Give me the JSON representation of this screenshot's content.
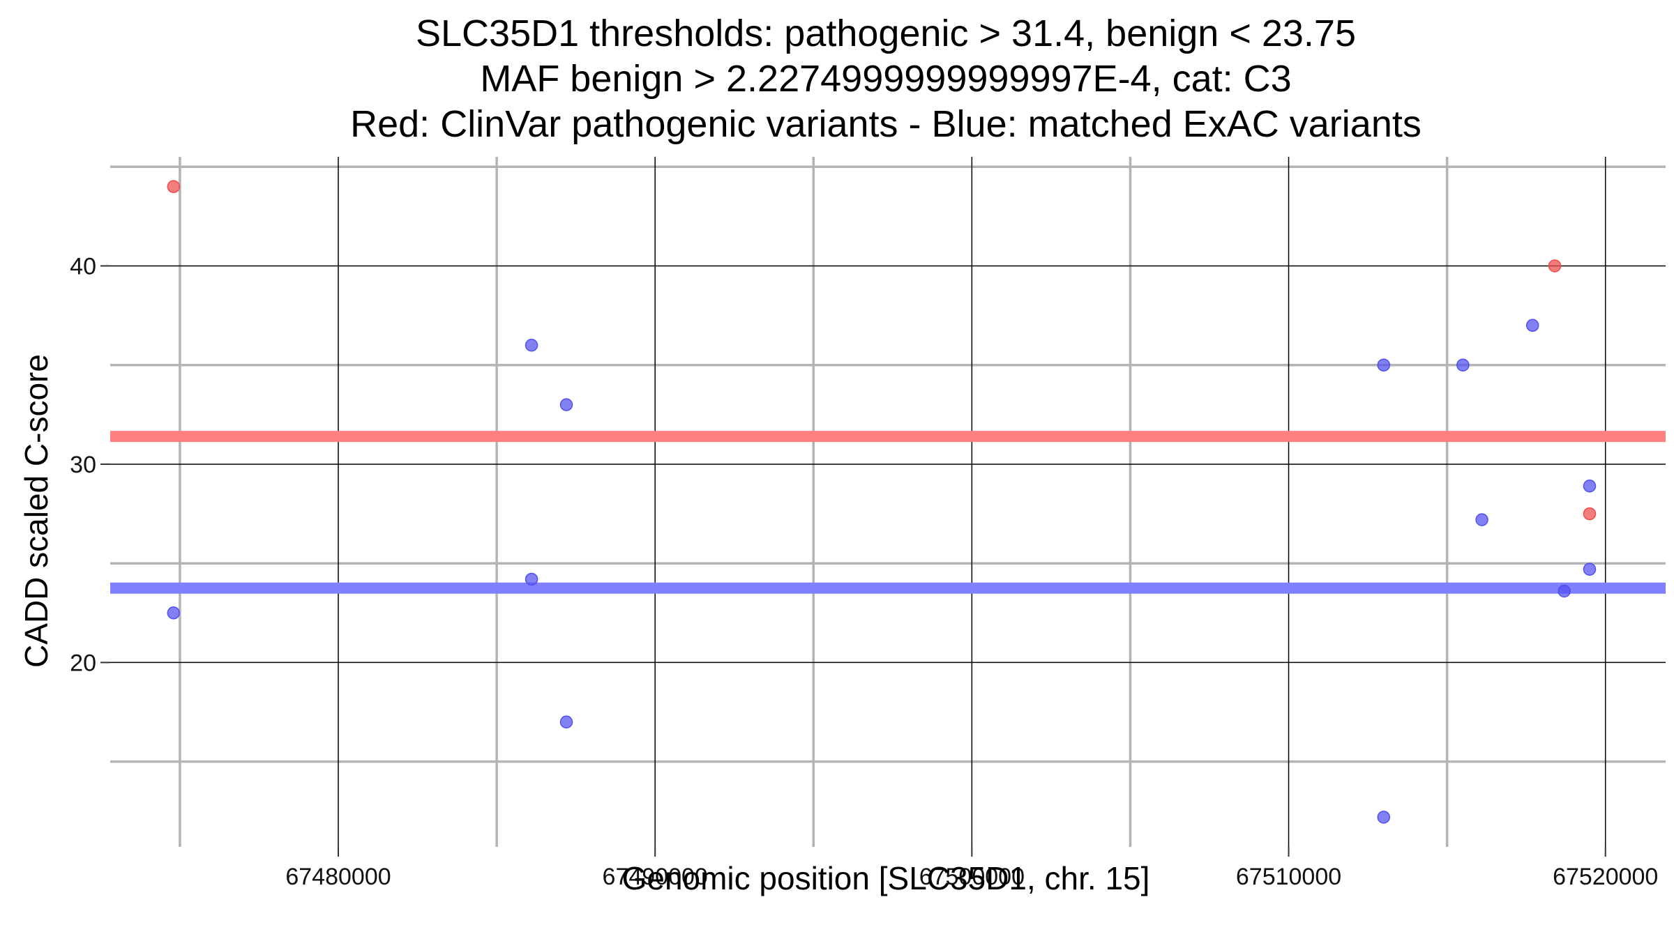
{
  "chart_data": {
    "type": "scatter",
    "title_lines": [
      "SLC35D1 thresholds: pathogenic > 31.4, benign < 23.75",
      "MAF benign > 2.2274999999999997E-4, cat: C3",
      "Red: ClinVar pathogenic variants - Blue: matched ExAC variants"
    ],
    "xlabel": "Genomic position [SLC35D1, chr. 15]",
    "ylabel": "CADD scaled C-score",
    "xlim": [
      67472800,
      67521900
    ],
    "ylim": [
      10.7,
      45.5
    ],
    "x_major_ticks": [
      67480000,
      67490000,
      67500000,
      67510000,
      67520000
    ],
    "x_tick_labels": [
      "67480000",
      "67490000",
      "67500000",
      "67510000",
      "67520000"
    ],
    "x_minor_gridlines": [
      67475000,
      67485000,
      67495000,
      67505000,
      67515000
    ],
    "y_major_ticks": [
      20,
      30,
      40
    ],
    "y_tick_labels": [
      "20",
      "30",
      "40"
    ],
    "y_minor_gridlines": [
      15,
      25,
      35,
      45
    ],
    "grid": true,
    "thresholds": [
      {
        "value": 31.4,
        "color": "#ff8080"
      },
      {
        "value": 23.75,
        "color": "#8080ff"
      }
    ],
    "series": [
      {
        "color": "#f04b4b",
        "points": [
          {
            "x": 67474800,
            "y": 44.0
          },
          {
            "x": 67518400,
            "y": 40.0
          },
          {
            "x": 67519500,
            "y": 27.5
          }
        ]
      },
      {
        "color": "#5050f0",
        "points": [
          {
            "x": 67474800,
            "y": 22.5
          },
          {
            "x": 67486100,
            "y": 36.0
          },
          {
            "x": 67486100,
            "y": 24.2
          },
          {
            "x": 67487200,
            "y": 33.0
          },
          {
            "x": 67487200,
            "y": 17.0
          },
          {
            "x": 67513000,
            "y": 35.0
          },
          {
            "x": 67513000,
            "y": 12.2
          },
          {
            "x": 67515500,
            "y": 35.0
          },
          {
            "x": 67516100,
            "y": 27.2
          },
          {
            "x": 67517700,
            "y": 37.0
          },
          {
            "x": 67518700,
            "y": 23.6
          },
          {
            "x": 67519500,
            "y": 28.9
          },
          {
            "x": 67519500,
            "y": 24.7
          }
        ]
      }
    ]
  }
}
